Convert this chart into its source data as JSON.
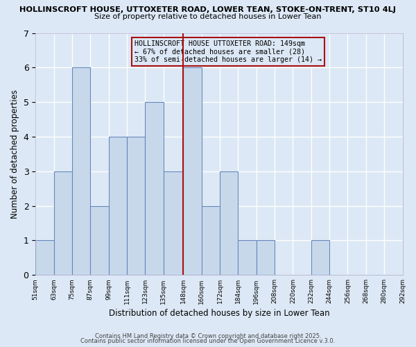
{
  "title1": "HOLLINSCROFT HOUSE, UTTOXETER ROAD, LOWER TEAN, STOKE-ON-TRENT, ST10 4LJ",
  "title2": "Size of property relative to detached houses in Lower Tean",
  "xlabel": "Distribution of detached houses by size in Lower Tean",
  "ylabel": "Number of detached properties",
  "bin_edges": [
    51,
    63,
    75,
    87,
    99,
    111,
    123,
    135,
    148,
    160,
    172,
    184,
    196,
    208,
    220,
    232,
    244,
    256,
    268,
    280,
    292
  ],
  "counts": [
    1,
    3,
    6,
    2,
    4,
    4,
    5,
    3,
    6,
    2,
    3,
    1,
    1,
    0,
    0,
    1,
    0,
    0,
    0,
    0
  ],
  "vline_x": 148,
  "bar_facecolor": "#c8d8eb",
  "bar_edgecolor": "#6688bb",
  "vline_color": "#aa1111",
  "annotation_box_edgecolor": "#aa1111",
  "annotation_text_line1": "HOLLINSCROFT HOUSE UTTOXETER ROAD: 149sqm",
  "annotation_text_line2": "← 67% of detached houses are smaller (28)",
  "annotation_text_line3": "33% of semi-detached houses are larger (14) →",
  "ylim": [
    0,
    7
  ],
  "yticks": [
    0,
    1,
    2,
    3,
    4,
    5,
    6,
    7
  ],
  "background_color": "#dce8f5",
  "grid_color": "#ffffff",
  "footer1": "Contains HM Land Registry data © Crown copyright and database right 2025.",
  "footer2": "Contains public sector information licensed under the Open Government Licence v.3.0."
}
